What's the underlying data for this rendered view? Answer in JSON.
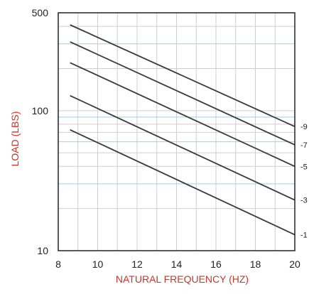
{
  "chart_data": {
    "type": "line",
    "title": "",
    "xlabel": "NATURAL FREQUENCY (HZ)",
    "ylabel": "LOAD (LBS)",
    "xlim": [
      8,
      20
    ],
    "ylim": [
      10,
      500
    ],
    "y_scale": "log",
    "x_ticks": [
      "8",
      "10",
      "12",
      "14",
      "16",
      "18",
      "20"
    ],
    "y_ticks": [
      {
        "value": 500,
        "label": "500"
      },
      {
        "value": 100,
        "label": "100"
      },
      {
        "value": 10,
        "label": "10"
      }
    ],
    "grid": true,
    "series": [
      {
        "name": "-9",
        "x": [
          8.6,
          20
        ],
        "y": [
          410,
          77
        ]
      },
      {
        "name": "-7",
        "x": [
          8.6,
          20
        ],
        "y": [
          310,
          57
        ]
      },
      {
        "name": "-5",
        "x": [
          8.6,
          20
        ],
        "y": [
          220,
          40
        ]
      },
      {
        "name": "-3",
        "x": [
          8.6,
          20
        ],
        "y": [
          128,
          23
        ]
      },
      {
        "name": "-1",
        "x": [
          8.6,
          20
        ],
        "y": [
          73,
          13
        ]
      }
    ],
    "colors": {
      "axis_title": "#c0392b",
      "line": "#3a3a3a",
      "frame": "#222222",
      "grid": "#cfcfcf",
      "grid_accents": [
        "#e6e08a",
        "#9fd0e8",
        "#e3a6e3"
      ]
    }
  }
}
